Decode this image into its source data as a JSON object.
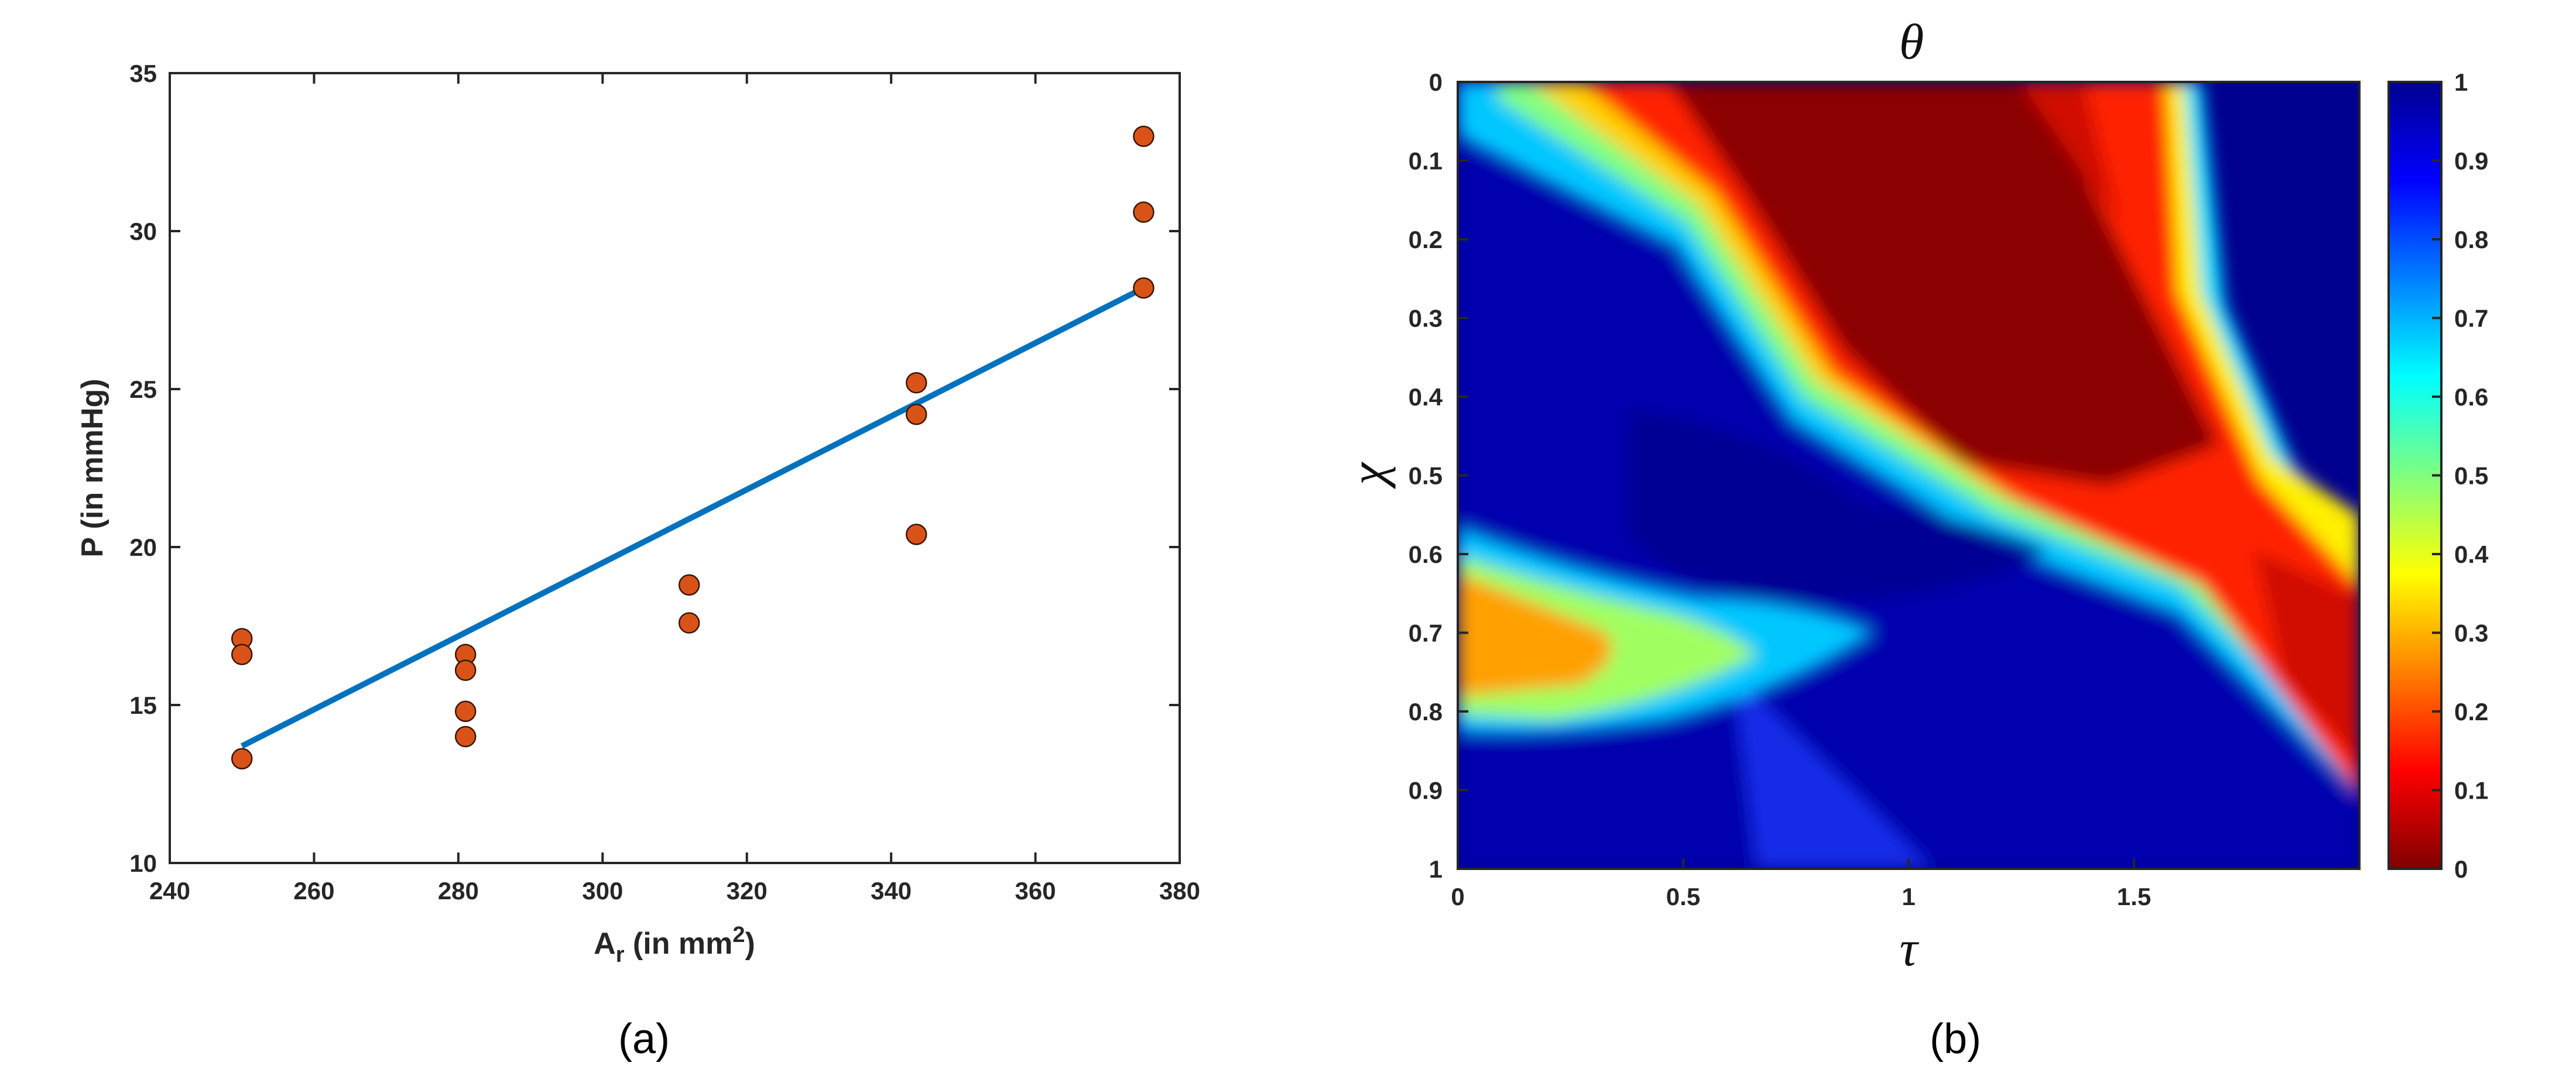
{
  "panel_labels": {
    "a": "(a)",
    "b": "(b)"
  },
  "colors": {
    "scatter_fill": "#D95319",
    "fit_line": "#0072BD",
    "axis": "#262626"
  },
  "chart_data": [
    {
      "type": "scatter",
      "xlabel": {
        "main": "A",
        "sub": "r",
        "rest": " (in mm",
        "sup": "2",
        "end": ")"
      },
      "ylabel": "P (in mmHg)",
      "xlim": [
        240,
        380
      ],
      "ylim": [
        10,
        35
      ],
      "xticks": [
        "240",
        "260",
        "280",
        "300",
        "320",
        "340",
        "360",
        "380"
      ],
      "yticks": [
        "10",
        "15",
        "20",
        "25",
        "30",
        "35"
      ],
      "grid": false,
      "series": [
        {
          "kind": "points",
          "x": [
            250,
            250,
            250,
            281,
            281,
            281,
            281,
            312,
            312,
            343.5,
            343.5,
            343.5,
            375,
            375,
            375
          ],
          "y": [
            17.1,
            16.6,
            13.3,
            16.6,
            16.1,
            14.8,
            14.0,
            18.8,
            17.6,
            25.2,
            24.2,
            20.4,
            33.0,
            30.6,
            28.2
          ]
        },
        {
          "kind": "fit_line",
          "x": [
            250,
            375
          ],
          "y": [
            13.7,
            28.2
          ]
        }
      ]
    },
    {
      "type": "heatmap",
      "title": "θ",
      "xlabel": "τ",
      "ylabel": "χ",
      "xlim": [
        0,
        2
      ],
      "ylim": [
        0,
        1
      ],
      "y_direction": "reversed",
      "xticks": [
        "0",
        "0.5",
        "1",
        "1.5"
      ],
      "yticks": [
        "0",
        "0.1",
        "0.2",
        "0.3",
        "0.4",
        "0.5",
        "0.6",
        "0.7",
        "0.8",
        "0.9",
        "1"
      ],
      "colormap": "jet",
      "colorbar": {
        "range": [
          0,
          1
        ],
        "ticks": [
          "0",
          "0.1",
          "0.2",
          "0.3",
          "0.4",
          "0.5",
          "0.6",
          "0.7",
          "0.8",
          "0.9",
          "1"
        ]
      },
      "features": [
        {
          "value": 0.0,
          "shape": "triangle",
          "vertices": [
            [
              0.48,
              0.0
            ],
            [
              1.6,
              0.0
            ],
            [
              1.6,
              0.56
            ]
          ]
        },
        {
          "value": 0.5,
          "shape": "ridge",
          "path": [
            [
              0.0,
              0.0
            ],
            [
              0.5,
              0.22
            ],
            [
              1.0,
              0.48
            ],
            [
              1.45,
              0.6
            ],
            [
              1.8,
              0.78
            ],
            [
              2.0,
              0.9
            ]
          ]
        },
        {
          "value": 0.4,
          "shape": "ridge",
          "path": [
            [
              1.45,
              0.0
            ],
            [
              1.55,
              0.25
            ],
            [
              1.7,
              0.5
            ],
            [
              2.0,
              0.65
            ]
          ]
        },
        {
          "value": 0.25,
          "shape": "blob",
          "center": [
            0.2,
            0.72
          ]
        }
      ]
    }
  ]
}
